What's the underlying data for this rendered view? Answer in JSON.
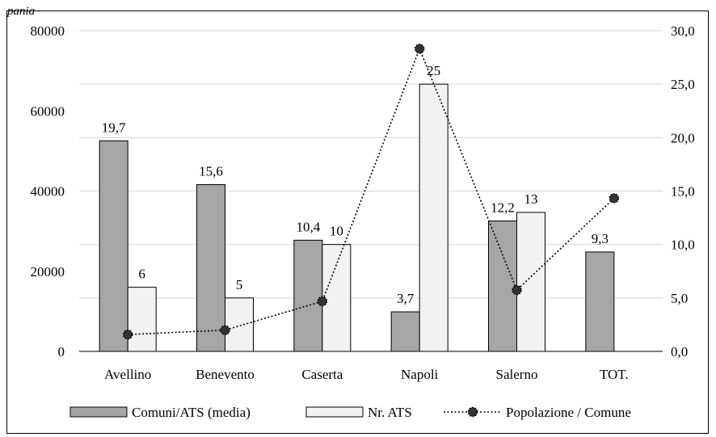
{
  "caption": "pania",
  "colors": {
    "bar_primary": "#a6a6a6",
    "bar_secondary": "#f2f2f2",
    "line": "#000000",
    "marker": "#333333",
    "grid": "#d9d9d9"
  },
  "chart_data": {
    "type": "bar",
    "categories": [
      "Avellino",
      "Benevento",
      "Caserta",
      "Napoli",
      "Salerno",
      "TOT."
    ],
    "y_left": {
      "ticks": [
        "0",
        "20000",
        "40000",
        "60000",
        "80000"
      ],
      "ylim": [
        0,
        80000
      ]
    },
    "y_right": {
      "ticks": [
        "0,0",
        "5,0",
        "10,0",
        "15,0",
        "20,0",
        "25,0",
        "30,0"
      ],
      "ylim": [
        0,
        30
      ]
    },
    "series": [
      {
        "name": "Comuni/ATS (media)",
        "type": "bar",
        "axis": "right",
        "values": [
          19.7,
          15.6,
          10.4,
          3.7,
          12.2,
          9.3
        ],
        "labels": [
          "19,7",
          "15,6",
          "10,4",
          "3,7",
          "12,2",
          "9,3"
        ]
      },
      {
        "name": "Nr. ATS",
        "type": "bar",
        "axis": "right",
        "values": [
          6,
          5,
          10,
          25,
          13,
          null
        ],
        "labels": [
          "6",
          "5",
          "10",
          "25",
          "13",
          ""
        ]
      },
      {
        "name": "Popolazione / Comune",
        "type": "line",
        "style": "dotted",
        "axis": "left",
        "values": [
          4200,
          5300,
          12500,
          75500,
          15300,
          38200
        ]
      }
    ],
    "legend_position": "bottom",
    "grid": true
  }
}
